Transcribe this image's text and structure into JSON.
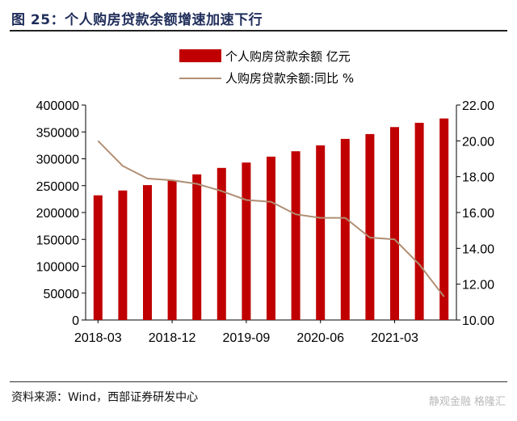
{
  "header": {
    "title": "图 25：个人购房贷款余额增速加速下行"
  },
  "footer": {
    "source": "资料来源：Wind，西部证券研发中心",
    "watermark": "静观金融 格隆汇"
  },
  "chart_data": {
    "type": "bar+line",
    "title": "图 25：个人购房贷款余额增速加速下行",
    "legend": [
      "个人购房贷款余额 亿元",
      "人购房贷款余额:同比 %"
    ],
    "legend_position": "top-right",
    "x_tick_labels": [
      "2018-03",
      "2018-12",
      "2019-09",
      "2020-06",
      "2021-03"
    ],
    "categories": [
      "2018-03",
      "2018-06",
      "2018-09",
      "2018-12",
      "2019-03",
      "2019-06",
      "2019-09",
      "2019-12",
      "2020-03",
      "2020-06",
      "2020-09",
      "2020-12",
      "2021-03",
      "2021-06",
      "2021-09"
    ],
    "series": [
      {
        "name": "个人购房贷款余额 亿元",
        "type": "bar",
        "axis": "left",
        "color": "#c00000",
        "values": [
          232000,
          241000,
          251000,
          260000,
          271000,
          283000,
          293000,
          304000,
          314000,
          325000,
          337000,
          346000,
          359000,
          367000,
          375000
        ]
      },
      {
        "name": "人购房贷款余额:同比 %",
        "type": "line",
        "axis": "right",
        "color": "#b08e73",
        "values": [
          20.0,
          18.6,
          17.9,
          17.8,
          17.6,
          17.2,
          16.7,
          16.6,
          15.9,
          15.7,
          15.7,
          14.6,
          14.5,
          13.1,
          11.3
        ]
      }
    ],
    "y_left": {
      "min": 0,
      "max": 400000,
      "ticks": [
        "0",
        "50000",
        "100000",
        "150000",
        "200000",
        "250000",
        "300000",
        "350000",
        "400000"
      ]
    },
    "y_right": {
      "min": 10,
      "max": 22,
      "ticks": [
        "10.00",
        "12.00",
        "14.00",
        "16.00",
        "18.00",
        "20.00",
        "22.00"
      ]
    }
  }
}
